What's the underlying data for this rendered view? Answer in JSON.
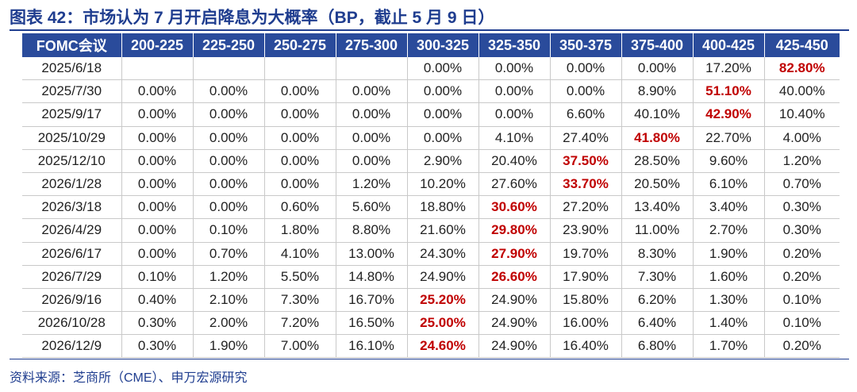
{
  "title": "图表 42：市场认为 7 月开启降息为大概率（BP，截止 5 月 9 日）",
  "table": {
    "headers": [
      "FOMC会议",
      "200-225",
      "225-250",
      "250-275",
      "275-300",
      "300-325",
      "325-350",
      "350-375",
      "375-400",
      "400-425",
      "425-450"
    ],
    "rows": [
      {
        "date": "2025/6/18",
        "values": [
          "",
          "",
          "",
          "",
          "0.00%",
          "0.00%",
          "0.00%",
          "0.00%",
          "17.20%",
          "82.80%"
        ],
        "highlight_index": 9
      },
      {
        "date": "2025/7/30",
        "values": [
          "0.00%",
          "0.00%",
          "0.00%",
          "0.00%",
          "0.00%",
          "0.00%",
          "0.00%",
          "8.90%",
          "51.10%",
          "40.00%"
        ],
        "highlight_index": 8
      },
      {
        "date": "2025/9/17",
        "values": [
          "0.00%",
          "0.00%",
          "0.00%",
          "0.00%",
          "0.00%",
          "0.00%",
          "6.60%",
          "40.10%",
          "42.90%",
          "10.40%"
        ],
        "highlight_index": 8
      },
      {
        "date": "2025/10/29",
        "values": [
          "0.00%",
          "0.00%",
          "0.00%",
          "0.00%",
          "0.00%",
          "4.10%",
          "27.40%",
          "41.80%",
          "22.70%",
          "4.00%"
        ],
        "highlight_index": 7
      },
      {
        "date": "2025/12/10",
        "values": [
          "0.00%",
          "0.00%",
          "0.00%",
          "0.00%",
          "2.90%",
          "20.40%",
          "37.50%",
          "28.50%",
          "9.60%",
          "1.20%"
        ],
        "highlight_index": 6
      },
      {
        "date": "2026/1/28",
        "values": [
          "0.00%",
          "0.00%",
          "0.00%",
          "1.20%",
          "10.20%",
          "27.60%",
          "33.70%",
          "20.50%",
          "6.10%",
          "0.70%"
        ],
        "highlight_index": 6
      },
      {
        "date": "2026/3/18",
        "values": [
          "0.00%",
          "0.00%",
          "0.60%",
          "5.60%",
          "18.80%",
          "30.60%",
          "27.20%",
          "13.40%",
          "3.40%",
          "0.30%"
        ],
        "highlight_index": 5
      },
      {
        "date": "2026/4/29",
        "values": [
          "0.00%",
          "0.10%",
          "1.80%",
          "8.80%",
          "21.60%",
          "29.80%",
          "23.90%",
          "11.00%",
          "2.70%",
          "0.30%"
        ],
        "highlight_index": 5
      },
      {
        "date": "2026/6/17",
        "values": [
          "0.00%",
          "0.70%",
          "4.10%",
          "13.00%",
          "24.30%",
          "27.90%",
          "19.70%",
          "8.30%",
          "1.90%",
          "0.20%"
        ],
        "highlight_index": 5
      },
      {
        "date": "2026/7/29",
        "values": [
          "0.10%",
          "1.20%",
          "5.50%",
          "14.80%",
          "24.90%",
          "26.60%",
          "17.90%",
          "7.30%",
          "1.60%",
          "0.20%"
        ],
        "highlight_index": 5
      },
      {
        "date": "2026/9/16",
        "values": [
          "0.40%",
          "2.10%",
          "7.30%",
          "16.70%",
          "25.20%",
          "24.90%",
          "15.80%",
          "6.20%",
          "1.30%",
          "0.10%"
        ],
        "highlight_index": 4
      },
      {
        "date": "2026/10/28",
        "values": [
          "0.30%",
          "2.00%",
          "7.20%",
          "16.50%",
          "25.00%",
          "24.90%",
          "16.00%",
          "6.40%",
          "1.40%",
          "0.10%"
        ],
        "highlight_index": 4
      },
      {
        "date": "2026/12/9",
        "values": [
          "0.30%",
          "1.90%",
          "7.00%",
          "16.10%",
          "24.60%",
          "24.90%",
          "16.40%",
          "6.80%",
          "1.70%",
          "0.20%"
        ],
        "highlight_index": 4
      }
    ]
  },
  "source": "资料来源：芝商所（CME）、申万宏源研究",
  "colors": {
    "accent": "#1f3d8f",
    "header_bg": "#2a4b9b",
    "highlight": "#c00000"
  }
}
